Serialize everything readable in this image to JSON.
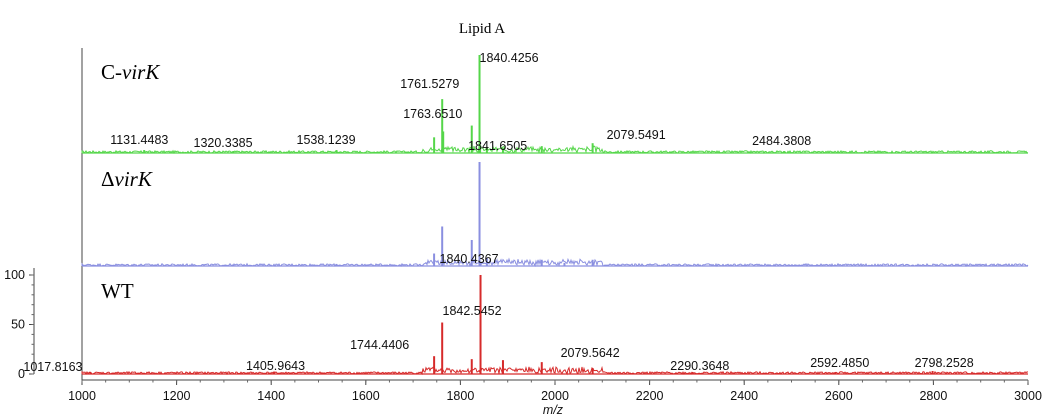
{
  "chart_data": {
    "type": "line",
    "title": "Lipid A",
    "xlabel": "m/z",
    "xlim": [
      1000,
      3000
    ],
    "x_ticks": [
      1000,
      1200,
      1400,
      1600,
      1800,
      2000,
      2200,
      2400,
      2600,
      2800,
      3000
    ],
    "y_ticks_wt": [
      0,
      50,
      100
    ],
    "panels": [
      {
        "label_prefix": "C-",
        "label_italic": "virK",
        "color": "#55d64a",
        "peaks": [
          {
            "x": 1840.4256,
            "y": 100
          },
          {
            "x": 1761.5279,
            "y": 55
          },
          {
            "x": 1763.651,
            "y": 22
          },
          {
            "x": 1744.44,
            "y": 16
          },
          {
            "x": 1824.0,
            "y": 28
          },
          {
            "x": 1841.6505,
            "y": 8
          },
          {
            "x": 1856.0,
            "y": 6
          },
          {
            "x": 1890.0,
            "y": 5
          },
          {
            "x": 1972.0,
            "y": 7
          },
          {
            "x": 2079.5491,
            "y": 10
          },
          {
            "x": 1131.4483,
            "y": 3
          },
          {
            "x": 1320.3385,
            "y": 2
          },
          {
            "x": 1538.1239,
            "y": 3
          },
          {
            "x": 2484.3808,
            "y": 2
          }
        ],
        "labels": [
          {
            "text": "1840.4256",
            "x": 1840.4256
          },
          {
            "text": "1761.5279",
            "x": 1761.5279
          },
          {
            "text": "1763.6510",
            "x": 1763.651
          },
          {
            "text": "1841.6505",
            "x": 1841.6505
          },
          {
            "text": "2079.5491",
            "x": 2079.5491
          },
          {
            "text": "1131.4483",
            "x": 1131.4483
          },
          {
            "text": "1320.3385",
            "x": 1320.3385
          },
          {
            "text": "1538.1239",
            "x": 1538.1239
          },
          {
            "text": "2484.3808",
            "x": 2484.3808
          }
        ]
      },
      {
        "label_prefix": "Δ",
        "label_italic": "virK",
        "color": "#8a8fe0",
        "peaks": [
          {
            "x": 1840.4367,
            "y": 100
          },
          {
            "x": 1761.5,
            "y": 38
          },
          {
            "x": 1744.4,
            "y": 12
          },
          {
            "x": 1824.0,
            "y": 25
          },
          {
            "x": 1856.0,
            "y": 8
          },
          {
            "x": 1972.0,
            "y": 6
          },
          {
            "x": 2079.5,
            "y": 6
          },
          {
            "x": 2020.0,
            "y": 3
          },
          {
            "x": 1538.0,
            "y": 2
          },
          {
            "x": 1320.0,
            "y": 1
          }
        ],
        "labels": [
          {
            "text": "1840.4367",
            "x": 1840.4367
          }
        ]
      },
      {
        "label_prefix": "",
        "label_italic": "WT",
        "color": "#d62a2a",
        "peaks": [
          {
            "x": 1842.5452,
            "y": 100
          },
          {
            "x": 1761.5,
            "y": 52
          },
          {
            "x": 1744.4406,
            "y": 18
          },
          {
            "x": 1824.0,
            "y": 15
          },
          {
            "x": 1890.0,
            "y": 14
          },
          {
            "x": 1972.0,
            "y": 12
          },
          {
            "x": 2079.5642,
            "y": 6
          },
          {
            "x": 1017.8163,
            "y": 2
          },
          {
            "x": 1405.9643,
            "y": 2
          },
          {
            "x": 2290.3648,
            "y": 2
          },
          {
            "x": 2592.485,
            "y": 2
          },
          {
            "x": 2798.2528,
            "y": 3
          }
        ],
        "labels": [
          {
            "text": "1842.5452",
            "x": 1842.5452
          },
          {
            "text": "1744.4406",
            "x": 1744.4406
          },
          {
            "text": "2079.5642",
            "x": 2079.5642
          },
          {
            "text": "1017.8163",
            "x": 1017.8163
          },
          {
            "text": "1405.9643",
            "x": 1405.9643
          },
          {
            "text": "2290.3648",
            "x": 2290.3648
          },
          {
            "text": "2592.4850",
            "x": 2592.485
          },
          {
            "text": "2798.2528",
            "x": 2798.2528
          }
        ]
      }
    ]
  }
}
